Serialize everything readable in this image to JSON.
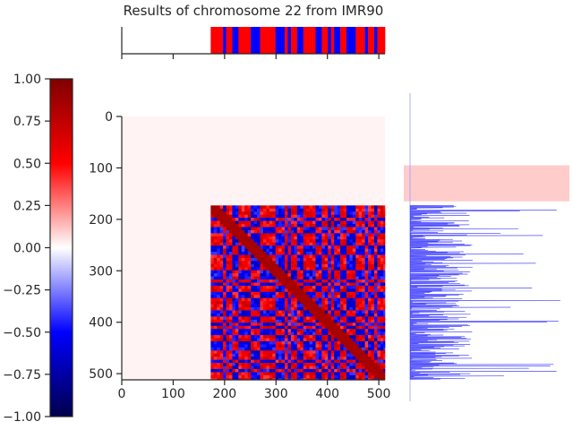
{
  "chart_data": {
    "type": "heatmap",
    "title": "Results of chromosome 22 from IMR90",
    "matrix": {
      "size": 512,
      "data_start": 173,
      "x_ticks": [
        0,
        100,
        200,
        300,
        400,
        500
      ],
      "y_ticks": [
        0,
        100,
        200,
        300,
        400,
        500
      ],
      "xlim": [
        0,
        512
      ],
      "ylim": [
        512,
        0
      ],
      "value_range": [
        -1.0,
        1.0
      ]
    },
    "colorbar": {
      "cmap": "seismic",
      "range": [
        -1.0,
        1.0
      ],
      "ticks": [
        1.0,
        0.75,
        0.5,
        0.25,
        0.0,
        -0.25,
        -0.5,
        -0.75,
        -1.0
      ],
      "tick_labels": [
        "1.00",
        "0.75",
        "0.50",
        "0.25",
        "0.00",
        "−0.25",
        "−0.50",
        "−0.75",
        "−1.00"
      ]
    },
    "compartment_track": {
      "type": "bar",
      "range": [
        173,
        512
      ],
      "colors": [
        "#ff0000",
        "#0000ff"
      ]
    },
    "side_profile": {
      "type": "line",
      "color": "#0000ff",
      "highlight_band": {
        "range": [
          95,
          165
        ],
        "color": "#ffcccc"
      }
    }
  }
}
